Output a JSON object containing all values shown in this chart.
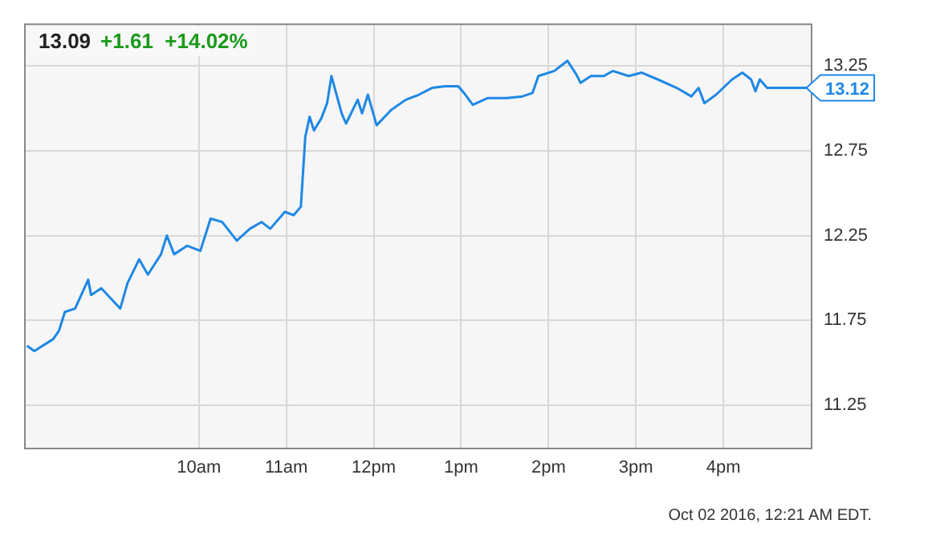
{
  "chart_data": {
    "type": "line",
    "title": "13.09",
    "subtitle": "+1.61  +14.02%",
    "annotations": [
      {
        "text": "13.12",
        "x": "2016-09-30T16:57",
        "y": 13.12
      },
      "Oct 02 2016, 12:21 AM EDT."
    ],
    "x": [
      "2016-09-30T08:02",
      "2016-09-30T08:07",
      "2016-09-30T08:20",
      "2016-09-30T08:24",
      "2016-09-30T08:28",
      "2016-09-30T08:35",
      "2016-09-30T08:44",
      "2016-09-30T08:46",
      "2016-09-30T08:53",
      "2016-09-30T09:06",
      "2016-09-30T09:11",
      "2016-09-30T09:19",
      "2016-09-30T09:25",
      "2016-09-30T09:34",
      "2016-09-30T09:38",
      "2016-09-30T09:43",
      "2016-09-30T09:52",
      "2016-09-30T10:01",
      "2016-09-30T10:08",
      "2016-09-30T10:16",
      "2016-09-30T10:26",
      "2016-09-30T10:35",
      "2016-09-30T10:43",
      "2016-09-30T10:49",
      "2016-09-30T10:59",
      "2016-09-30T11:05",
      "2016-09-30T11:10",
      "2016-09-30T11:13",
      "2016-09-30T11:16",
      "2016-09-30T11:19",
      "2016-09-30T11:24",
      "2016-09-30T11:28",
      "2016-09-30T11:31",
      "2016-09-30T11:38",
      "2016-09-30T11:41",
      "2016-09-30T11:49",
      "2016-09-30T11:52",
      "2016-09-30T11:56",
      "2016-09-30T12:02",
      "2016-09-30T12:12",
      "2016-09-30T12:22",
      "2016-09-30T12:31",
      "2016-09-30T12:40",
      "2016-09-30T12:49",
      "2016-09-30T12:58",
      "2016-09-30T13:02",
      "2016-09-30T13:08",
      "2016-09-30T13:18",
      "2016-09-30T13:31",
      "2016-09-30T13:42",
      "2016-09-30T13:49",
      "2016-09-30T13:53",
      "2016-09-30T14:04",
      "2016-09-30T14:13",
      "2016-09-30T14:19",
      "2016-09-30T14:22",
      "2016-09-30T14:29",
      "2016-09-30T14:38",
      "2016-09-30T14:44",
      "2016-09-30T14:55",
      "2016-09-30T15:04",
      "2016-09-30T15:15",
      "2016-09-30T15:28",
      "2016-09-30T15:38",
      "2016-09-30T15:43",
      "2016-09-30T15:47",
      "2016-09-30T15:55",
      "2016-09-30T16:06",
      "2016-09-30T16:13",
      "2016-09-30T16:19",
      "2016-09-30T16:22",
      "2016-09-30T16:25",
      "2016-09-30T16:30",
      "2016-09-30T16:48",
      "2016-09-30T16:57"
    ],
    "series": [
      {
        "color": "#1e88e5",
        "values": [
          11.6,
          11.57,
          11.64,
          11.69,
          11.8,
          11.82,
          11.99,
          11.9,
          11.94,
          11.82,
          11.97,
          12.11,
          12.02,
          12.14,
          12.25,
          12.14,
          12.19,
          12.16,
          12.35,
          12.33,
          12.22,
          12.29,
          12.33,
          12.29,
          12.39,
          12.37,
          12.42,
          12.83,
          12.95,
          12.87,
          12.94,
          13.03,
          13.19,
          12.97,
          12.91,
          13.05,
          12.97,
          13.08,
          12.9,
          12.99,
          13.05,
          13.08,
          13.12,
          13.13,
          13.13,
          13.09,
          13.02,
          13.06,
          13.06,
          13.07,
          13.09,
          13.19,
          13.22,
          13.28,
          13.2,
          13.15,
          13.19,
          13.19,
          13.22,
          13.19,
          13.21,
          13.17,
          13.12,
          13.07,
          13.12,
          13.03,
          13.08,
          13.17,
          13.21,
          13.17,
          13.1,
          13.17,
          13.12,
          13.12,
          13.12
        ]
      }
    ],
    "xlim": [
      "2016-09-30T08:00",
      "2016-09-30T17:00"
    ],
    "xticks": [
      {
        "value": "2016-09-30T10:00",
        "label": "10am"
      },
      {
        "value": "2016-09-30T11:00",
        "label": "11am"
      },
      {
        "value": "2016-09-30T12:00",
        "label": "12pm"
      },
      {
        "value": "2016-09-30T13:00",
        "label": "1pm"
      },
      {
        "value": "2016-09-30T14:00",
        "label": "2pm"
      },
      {
        "value": "2016-09-30T15:00",
        "label": "3pm"
      },
      {
        "value": "2016-09-30T16:00",
        "label": "4pm"
      }
    ],
    "ylim": [
      11,
      13.5
    ],
    "yticks": [
      11.25,
      11.75,
      12.25,
      12.75,
      13.25
    ],
    "grid": true,
    "legend": false,
    "marker": "none",
    "line_style": "solid"
  }
}
